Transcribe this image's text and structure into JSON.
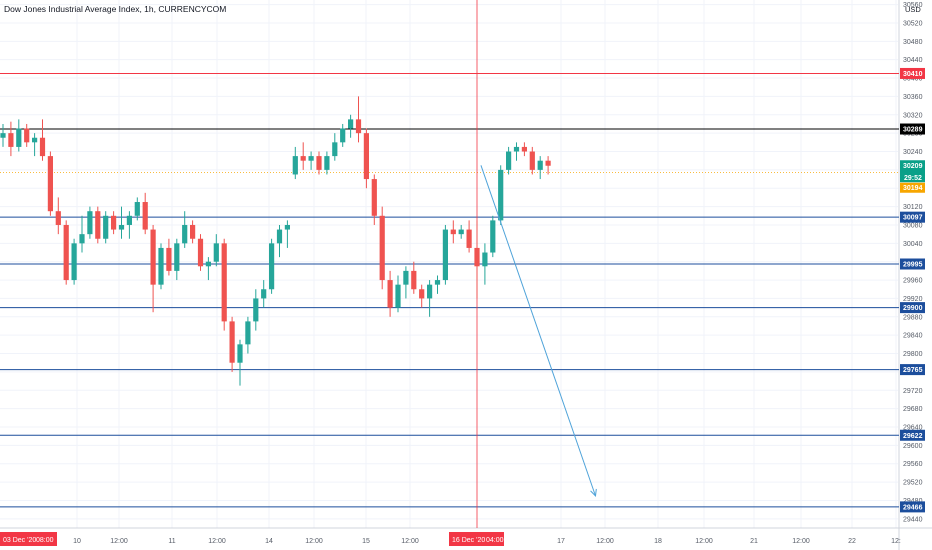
{
  "header": {
    "title": "Dow Jones Industrial Average Index, 1h, CURRENCYCOM",
    "currency": "USD"
  },
  "colors": {
    "up": "#26a69a",
    "down": "#ef5350",
    "grid": "#f0f3fa",
    "level_blue": "#1c4e9c",
    "level_red": "#f23645",
    "level_black": "#000000",
    "crosshair": "#f23645",
    "arrow": "#4fa3d9",
    "axis_text": "#555b66",
    "price_tag": "#0aa088",
    "price_orange": "#f7a600"
  },
  "chart_data": {
    "type": "candlestick",
    "title": "Dow Jones Industrial Average Index, 1h, CURRENCYCOM",
    "ylim": [
      29420,
      30570
    ],
    "y_ticks": [
      30560,
      30520,
      30480,
      30440,
      30400,
      30360,
      30320,
      30280,
      30240,
      30200,
      30160,
      30120,
      30080,
      30040,
      30000,
      29960,
      29920,
      29880,
      29840,
      29800,
      29760,
      29720,
      29680,
      29640,
      29600,
      29560,
      29520,
      29480,
      29440
    ],
    "x_ticks": [
      "10",
      "12:00",
      "11",
      "12:00",
      "14",
      "12:00",
      "15",
      "12:00",
      "17",
      "12:00",
      "18",
      "12:00",
      "21",
      "12:00",
      "22",
      "12:"
    ],
    "x_highlight_left": [
      "03 Dec '20",
      "08:00"
    ],
    "x_highlight_center": [
      "16 Dec '20",
      "04:00"
    ],
    "grid": true,
    "horizontal_levels": [
      {
        "value": 30410,
        "label": "30410",
        "color": "red"
      },
      {
        "value": 30289,
        "label": "30289",
        "color": "black"
      },
      {
        "value": 30097,
        "label": "30097",
        "color": "blue"
      },
      {
        "value": 29995,
        "label": "29995",
        "color": "blue"
      },
      {
        "value": 29900,
        "label": "29900",
        "color": "blue"
      },
      {
        "value": 29765,
        "label": "29765",
        "color": "blue"
      },
      {
        "value": 29622,
        "label": "29622",
        "color": "blue"
      },
      {
        "value": 29466,
        "label": "29466",
        "color": "blue"
      }
    ],
    "price_labels": [
      {
        "value": 30209,
        "label": "30209",
        "kind": "current"
      },
      {
        "value": 30180,
        "label": "29:52",
        "kind": "countdown"
      },
      {
        "value": 30194,
        "label": "30194",
        "kind": "orange"
      }
    ],
    "projection_arrow": {
      "from": [
        60.5,
        30210
      ],
      "to": [
        75,
        29490
      ]
    },
    "crosshair_index": 60,
    "candles": [
      {
        "o": 30270,
        "h": 30300,
        "l": 30250,
        "c": 30280
      },
      {
        "o": 30280,
        "h": 30305,
        "l": 30230,
        "c": 30250
      },
      {
        "o": 30250,
        "h": 30310,
        "l": 30240,
        "c": 30290
      },
      {
        "o": 30290,
        "h": 30300,
        "l": 30250,
        "c": 30260
      },
      {
        "o": 30260,
        "h": 30280,
        "l": 30230,
        "c": 30270
      },
      {
        "o": 30270,
        "h": 30310,
        "l": 30220,
        "c": 30230
      },
      {
        "o": 30230,
        "h": 30240,
        "l": 30100,
        "c": 30110
      },
      {
        "o": 30110,
        "h": 30140,
        "l": 30060,
        "c": 30080
      },
      {
        "o": 30080,
        "h": 30090,
        "l": 29950,
        "c": 29960
      },
      {
        "o": 29960,
        "h": 30050,
        "l": 29950,
        "c": 30040
      },
      {
        "o": 30040,
        "h": 30100,
        "l": 30020,
        "c": 30060
      },
      {
        "o": 30060,
        "h": 30120,
        "l": 30050,
        "c": 30110
      },
      {
        "o": 30110,
        "h": 30120,
        "l": 30040,
        "c": 30050
      },
      {
        "o": 30050,
        "h": 30110,
        "l": 30040,
        "c": 30100
      },
      {
        "o": 30100,
        "h": 30110,
        "l": 30060,
        "c": 30070
      },
      {
        "o": 30070,
        "h": 30120,
        "l": 30050,
        "c": 30080
      },
      {
        "o": 30080,
        "h": 30110,
        "l": 30050,
        "c": 30100
      },
      {
        "o": 30100,
        "h": 30140,
        "l": 30090,
        "c": 30130
      },
      {
        "o": 30130,
        "h": 30150,
        "l": 30060,
        "c": 30070
      },
      {
        "o": 30070,
        "h": 30080,
        "l": 29890,
        "c": 29950
      },
      {
        "o": 29950,
        "h": 30040,
        "l": 29940,
        "c": 30030
      },
      {
        "o": 30030,
        "h": 30050,
        "l": 29970,
        "c": 29980
      },
      {
        "o": 29980,
        "h": 30050,
        "l": 29960,
        "c": 30040
      },
      {
        "o": 30040,
        "h": 30110,
        "l": 30030,
        "c": 30080
      },
      {
        "o": 30080,
        "h": 30090,
        "l": 30040,
        "c": 30050
      },
      {
        "o": 30050,
        "h": 30060,
        "l": 29980,
        "c": 29990
      },
      {
        "o": 29990,
        "h": 30010,
        "l": 29960,
        "c": 30000
      },
      {
        "o": 30000,
        "h": 30060,
        "l": 29990,
        "c": 30040
      },
      {
        "o": 30040,
        "h": 30050,
        "l": 29850,
        "c": 29870
      },
      {
        "o": 29870,
        "h": 29880,
        "l": 29760,
        "c": 29780
      },
      {
        "o": 29780,
        "h": 29830,
        "l": 29730,
        "c": 29820
      },
      {
        "o": 29820,
        "h": 29880,
        "l": 29800,
        "c": 29870
      },
      {
        "o": 29870,
        "h": 29940,
        "l": 29850,
        "c": 29920
      },
      {
        "o": 29920,
        "h": 29960,
        "l": 29900,
        "c": 29940
      },
      {
        "o": 29940,
        "h": 30050,
        "l": 29930,
        "c": 30040
      },
      {
        "o": 30040,
        "h": 30080,
        "l": 30010,
        "c": 30070
      },
      {
        "o": 30070,
        "h": 30090,
        "l": 30030,
        "c": 30080
      },
      {
        "o": 30190,
        "h": 30250,
        "l": 30180,
        "c": 30230
      },
      {
        "o": 30230,
        "h": 30260,
        "l": 30200,
        "c": 30220
      },
      {
        "o": 30220,
        "h": 30240,
        "l": 30200,
        "c": 30230
      },
      {
        "o": 30230,
        "h": 30240,
        "l": 30190,
        "c": 30200
      },
      {
        "o": 30200,
        "h": 30240,
        "l": 30190,
        "c": 30230
      },
      {
        "o": 30230,
        "h": 30280,
        "l": 30220,
        "c": 30260
      },
      {
        "o": 30260,
        "h": 30300,
        "l": 30250,
        "c": 30290
      },
      {
        "o": 30290,
        "h": 30320,
        "l": 30270,
        "c": 30310
      },
      {
        "o": 30310,
        "h": 30360,
        "l": 30260,
        "c": 30280
      },
      {
        "o": 30280,
        "h": 30290,
        "l": 30160,
        "c": 30180
      },
      {
        "o": 30180,
        "h": 30190,
        "l": 30080,
        "c": 30100
      },
      {
        "o": 30100,
        "h": 30120,
        "l": 29940,
        "c": 29960
      },
      {
        "o": 29960,
        "h": 29980,
        "l": 29880,
        "c": 29900
      },
      {
        "o": 29900,
        "h": 29970,
        "l": 29890,
        "c": 29950
      },
      {
        "o": 29950,
        "h": 29990,
        "l": 29920,
        "c": 29980
      },
      {
        "o": 29980,
        "h": 30000,
        "l": 29930,
        "c": 29940
      },
      {
        "o": 29940,
        "h": 29950,
        "l": 29900,
        "c": 29920
      },
      {
        "o": 29920,
        "h": 29960,
        "l": 29880,
        "c": 29950
      },
      {
        "o": 29950,
        "h": 29970,
        "l": 29930,
        "c": 29960
      },
      {
        "o": 29960,
        "h": 30080,
        "l": 29950,
        "c": 30070
      },
      {
        "o": 30070,
        "h": 30090,
        "l": 30040,
        "c": 30060
      },
      {
        "o": 30060,
        "h": 30080,
        "l": 30050,
        "c": 30070
      },
      {
        "o": 30070,
        "h": 30090,
        "l": 30020,
        "c": 30030
      },
      {
        "o": 30030,
        "h": 30090,
        "l": 29920,
        "c": 29990
      },
      {
        "o": 29990,
        "h": 30040,
        "l": 29950,
        "c": 30020
      },
      {
        "o": 30020,
        "h": 30100,
        "l": 30010,
        "c": 30090
      },
      {
        "o": 30090,
        "h": 30210,
        "l": 30080,
        "c": 30200
      },
      {
        "o": 30200,
        "h": 30250,
        "l": 30190,
        "c": 30240
      },
      {
        "o": 30240,
        "h": 30260,
        "l": 30220,
        "c": 30250
      },
      {
        "o": 30250,
        "h": 30260,
        "l": 30230,
        "c": 30240
      },
      {
        "o": 30240,
        "h": 30250,
        "l": 30190,
        "c": 30200
      },
      {
        "o": 30200,
        "h": 30230,
        "l": 30180,
        "c": 30220
      },
      {
        "o": 30220,
        "h": 30230,
        "l": 30190,
        "c": 30209
      }
    ]
  }
}
